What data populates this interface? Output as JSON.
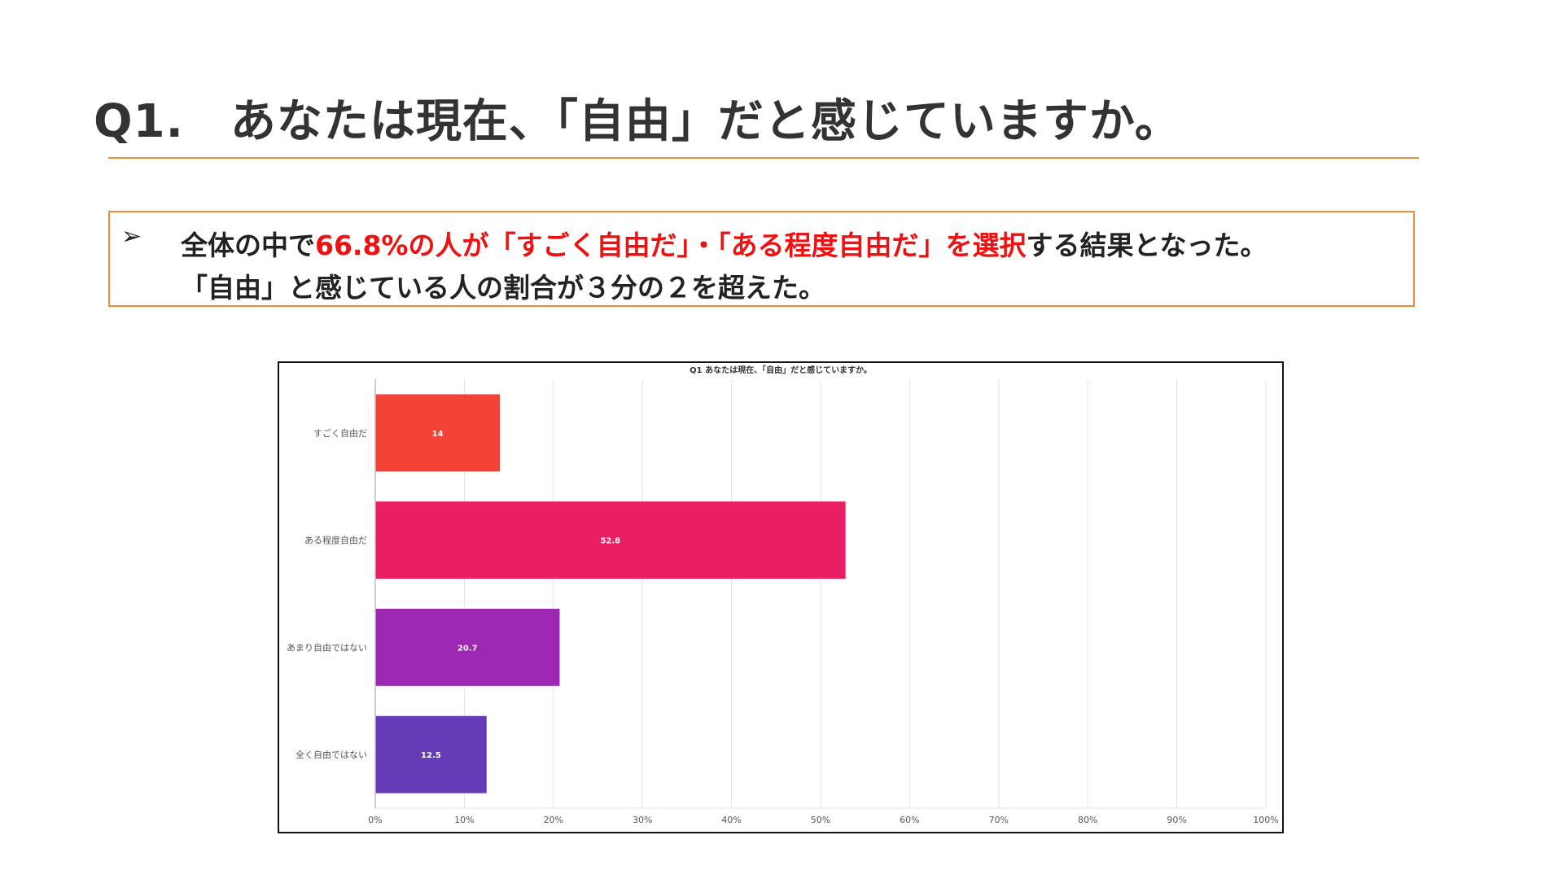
{
  "slide": {
    "title": "Q1.　あなたは現在、「自由」だと感じていますか。"
  },
  "summary": {
    "bullet": "➢",
    "line1_prefix": "全体の中で",
    "line1_highlight": "66.8%の人が「すごく自由だ」・「ある程度自由だ」を選択",
    "line1_suffix": "する結果となった。",
    "line2": "「自由」と感じている人の割合が３分の２を超えた。"
  },
  "colors": {
    "accent": "#f08a3c",
    "highlight": "#ee1111"
  },
  "chart_data": {
    "type": "bar",
    "orientation": "horizontal",
    "title": "Q1 あなたは現在、「自由」だと感じていますか。",
    "categories": [
      "すごく自由だ",
      "ある程度自由だ",
      "あまり自由ではない",
      "全く自由ではない"
    ],
    "values": [
      14,
      52.8,
      20.7,
      12.5
    ],
    "value_labels": [
      "14",
      "52.8",
      "20.7",
      "12.5"
    ],
    "colors": [
      "#f44336",
      "#e91e63",
      "#9c27b0",
      "#673ab7"
    ],
    "xlim": [
      0,
      100
    ],
    "xticks": [
      0,
      10,
      20,
      30,
      40,
      50,
      60,
      70,
      80,
      90,
      100
    ],
    "xtick_labels": [
      "0%",
      "10%",
      "20%",
      "30%",
      "40%",
      "50%",
      "60%",
      "70%",
      "80%",
      "90%",
      "100%"
    ],
    "xlabel": "",
    "ylabel": "",
    "grid": true,
    "legend": "none"
  }
}
